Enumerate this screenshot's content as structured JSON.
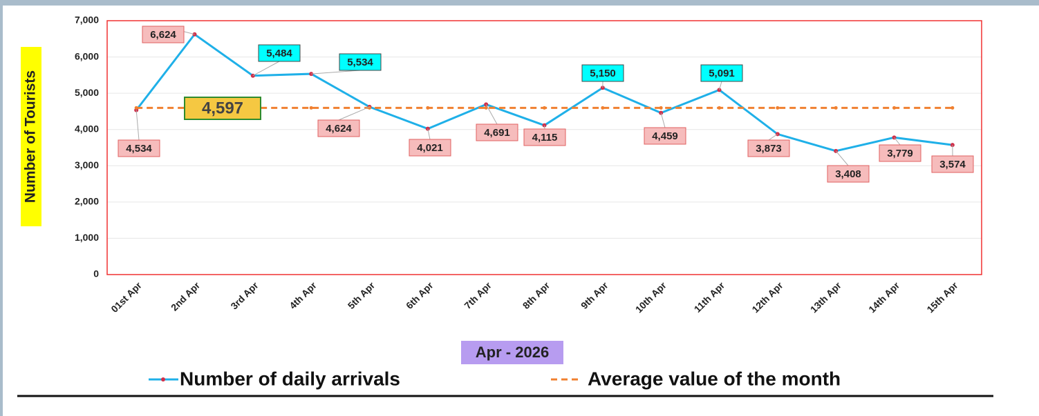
{
  "chart_data": {
    "type": "line",
    "y_label": "Number of Tourists",
    "x_label": "Apr - 2026",
    "categories": [
      "01st Apr",
      "2nd Apr",
      "3rd Apr",
      "4th Apr",
      "5th Apr",
      "6th Apr",
      "7th Apr",
      "8th Apr",
      "9th Apr",
      "10th Apr",
      "11th Apr",
      "12th Apr",
      "13th Apr",
      "14th Apr",
      "15th Apr"
    ],
    "series": [
      {
        "name": "Number of daily arrivals",
        "color": "#1fb0e8",
        "marker_color": "#d0304a",
        "values": [
          4534,
          6624,
          5484,
          5534,
          4624,
          4021,
          4691,
          4115,
          5150,
          4459,
          5091,
          3873,
          3408,
          3779,
          3574
        ],
        "value_labels": [
          "4,534",
          "6,624",
          "5,484",
          "5,534",
          "4,624",
          "4,021",
          "4,691",
          "4,115",
          "5,150",
          "4,459",
          "5,091",
          "3,873",
          "3,408",
          "3,779",
          "3,574"
        ]
      },
      {
        "name": "Average value of the month",
        "color": "#f08030",
        "dashed": true,
        "values": [
          4597,
          4597,
          4597,
          4597,
          4597,
          4597,
          4597,
          4597,
          4597,
          4597,
          4597,
          4597,
          4597,
          4597,
          4597
        ],
        "value_labels": [
          null,
          "4,597",
          null,
          null,
          null,
          null,
          null,
          null,
          null,
          null,
          null,
          null,
          null,
          null,
          null
        ]
      }
    ],
    "ylim": [
      0,
      7000
    ],
    "yticks": [
      0,
      {
        "value": 1000,
        "label": "1,000"
      },
      {
        "value": 2000,
        "label": "2,000"
      },
      {
        "value": 3000,
        "label": "3,000"
      },
      {
        "value": 4000,
        "label": "4,000"
      },
      {
        "value": 5000,
        "label": "5,000"
      },
      {
        "value": 6000,
        "label": "6,000"
      },
      {
        "value": 7000,
        "label": "7,000"
      }
    ],
    "grid": true,
    "legend": "bottom"
  }
}
